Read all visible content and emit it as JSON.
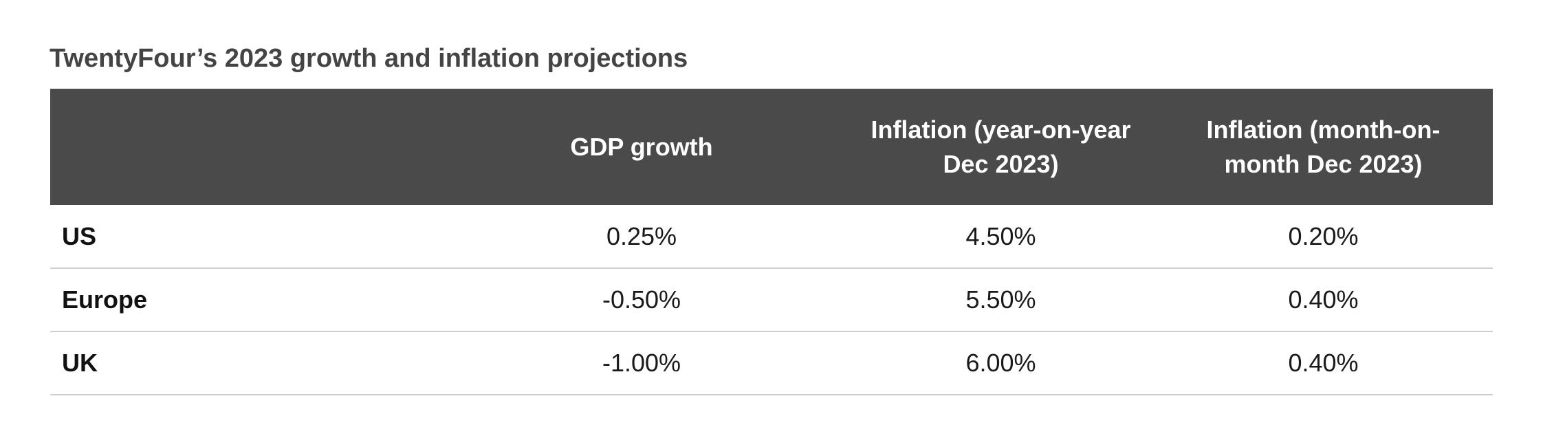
{
  "title": "TwentyFour’s 2023 growth and inflation projections",
  "table": {
    "headers": [
      "",
      "GDP growth",
      "Inflation (year-on-year Dec 2023)",
      "Inflation (month-on-month Dec 2023)"
    ],
    "rows": [
      {
        "region": "US",
        "gdp_growth": "0.25%",
        "inflation_yoy": "4.50%",
        "inflation_mom": "0.20%"
      },
      {
        "region": "Europe",
        "gdp_growth": "-0.50%",
        "inflation_yoy": "5.50%",
        "inflation_mom": "0.40%"
      },
      {
        "region": "UK",
        "gdp_growth": "-1.00%",
        "inflation_yoy": "6.00%",
        "inflation_mom": "0.40%"
      }
    ]
  },
  "colors": {
    "header_background": "#4a4a4a",
    "header_text": "#ffffff",
    "title_text": "#444444",
    "row_divider": "#cfcfcf"
  }
}
